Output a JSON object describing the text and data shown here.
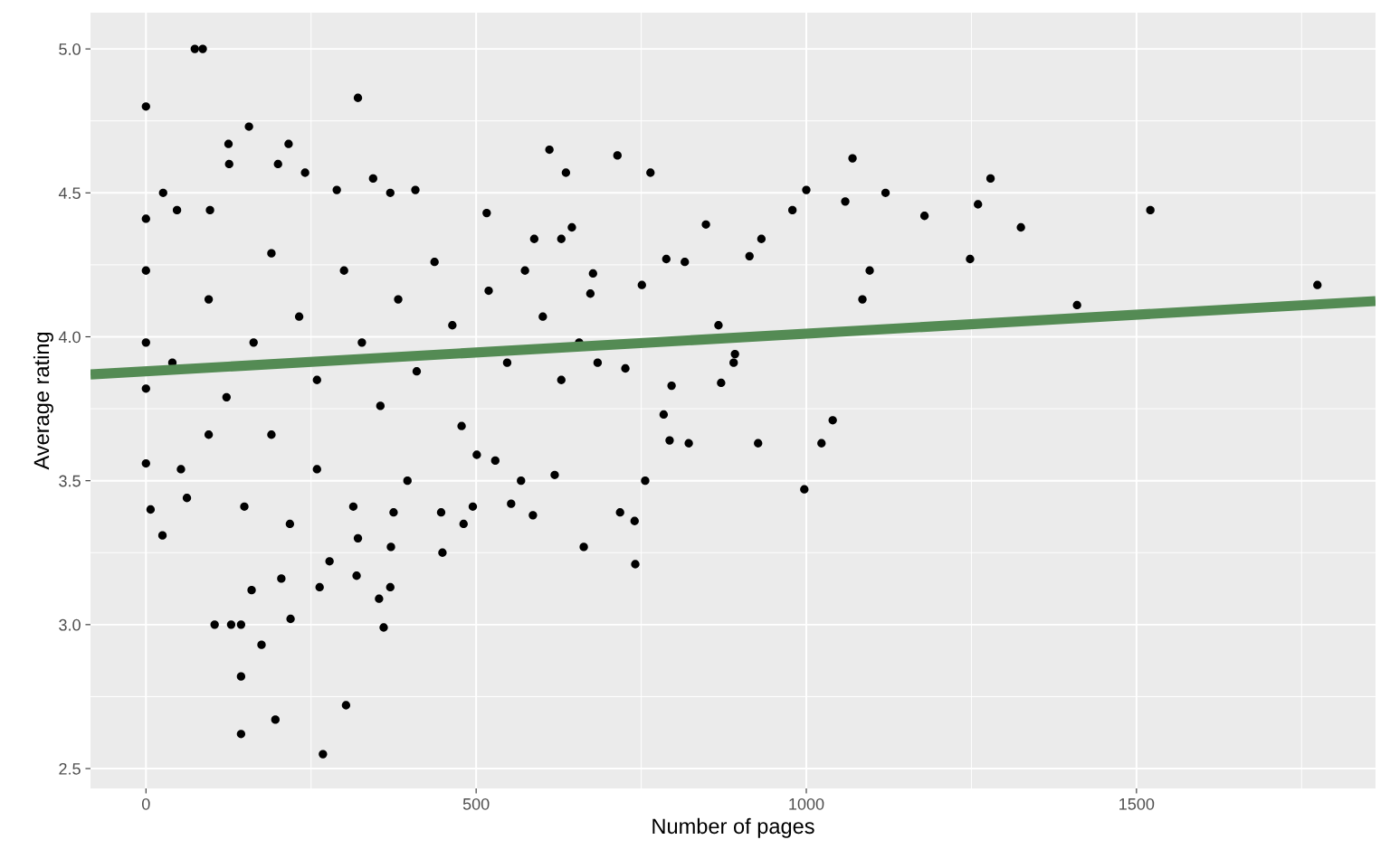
{
  "chart_data": {
    "type": "scatter",
    "xlabel": "Number of pages",
    "ylabel": "Average rating",
    "xlim": [
      -84,
      1862
    ],
    "ylim": [
      2.431,
      5.126
    ],
    "xticks": [
      0,
      500,
      1000,
      1500
    ],
    "yticks": [
      {
        "value": 2.5,
        "label": "2.5"
      },
      {
        "value": 3.0,
        "label": "3.0"
      },
      {
        "value": 3.5,
        "label": "3.5"
      },
      {
        "value": 4.0,
        "label": "4.0"
      },
      {
        "value": 4.5,
        "label": "4.5"
      },
      {
        "value": 5.0,
        "label": "5.0"
      }
    ],
    "grid": true,
    "series": [
      {
        "color": "#000000",
        "marker": "circle",
        "x": [
          0,
          74,
          86,
          321,
          156,
          216,
          125,
          611,
          714,
          1070,
          1279,
          1000,
          1120,
          1059,
          1179,
          1260,
          1521,
          1325,
          1248,
          1410,
          1774,
          1085,
          1096,
          997,
          1040,
          1023,
          927,
          979,
          932,
          914,
          848,
          764,
          636,
          741,
          663,
          718,
          740,
          756,
          586,
          568,
          619,
          793,
          822,
          867,
          871,
          892,
          890,
          784,
          796,
          816,
          788,
          673,
          751,
          726,
          677,
          645,
          144,
          144,
          196,
          268,
          303,
          104,
          129,
          144,
          219,
          175,
          360,
          353,
          370,
          160,
          263,
          319,
          205,
          278,
          371,
          449,
          321,
          447,
          375,
          25,
          7,
          62,
          495,
          481,
          529,
          501,
          553,
          26,
          0,
          126,
          200,
          241,
          344,
          408,
          289,
          370,
          516,
          97,
          47,
          588,
          629,
          0,
          0,
          0,
          0,
          40,
          95,
          122,
          163,
          190,
          190,
          232,
          259,
          259,
          300,
          327,
          355,
          382,
          410,
          437,
          464,
          478,
          519,
          547,
          574,
          601,
          629,
          656,
          684,
          95,
          53,
          149,
          218,
          396,
          314
        ],
        "values": [
          4.8,
          5.0,
          5.0,
          4.83,
          4.73,
          4.67,
          4.67,
          4.65,
          4.63,
          4.62,
          4.55,
          4.51,
          4.5,
          4.47,
          4.42,
          4.46,
          4.44,
          4.38,
          4.27,
          4.11,
          4.18,
          4.13,
          4.23,
          3.47,
          3.71,
          3.63,
          3.63,
          4.44,
          4.34,
          4.28,
          4.39,
          4.57,
          4.57,
          3.21,
          3.27,
          3.39,
          3.36,
          3.5,
          3.38,
          3.5,
          3.52,
          3.64,
          3.63,
          4.04,
          3.84,
          3.94,
          3.91,
          3.73,
          3.83,
          4.26,
          4.27,
          4.15,
          4.18,
          3.89,
          4.22,
          4.38,
          2.62,
          2.82,
          2.67,
          2.55,
          2.72,
          3.0,
          3.0,
          3.0,
          3.02,
          2.93,
          2.99,
          3.09,
          3.13,
          3.12,
          3.13,
          3.17,
          3.16,
          3.22,
          3.27,
          3.25,
          3.3,
          3.39,
          3.39,
          3.31,
          3.4,
          3.44,
          3.41,
          3.35,
          3.57,
          3.59,
          3.42,
          4.5,
          4.41,
          4.6,
          4.6,
          4.57,
          4.55,
          4.51,
          4.51,
          4.5,
          4.43,
          4.44,
          4.44,
          4.34,
          4.34,
          4.23,
          3.98,
          3.82,
          3.56,
          3.91,
          4.13,
          3.79,
          3.98,
          4.29,
          3.66,
          4.07,
          3.85,
          3.54,
          4.23,
          3.98,
          3.76,
          4.13,
          3.88,
          4.26,
          4.04,
          3.69,
          4.16,
          3.91,
          4.23,
          4.07,
          3.85,
          3.98,
          3.91,
          3.66,
          3.54,
          3.41,
          3.35,
          3.5,
          3.41
        ]
      },
      {
        "type": "line",
        "marker": "none",
        "color": "#548b54",
        "x": [
          -84,
          1862
        ],
        "values": [
          3.869,
          4.124
        ]
      }
    ]
  }
}
